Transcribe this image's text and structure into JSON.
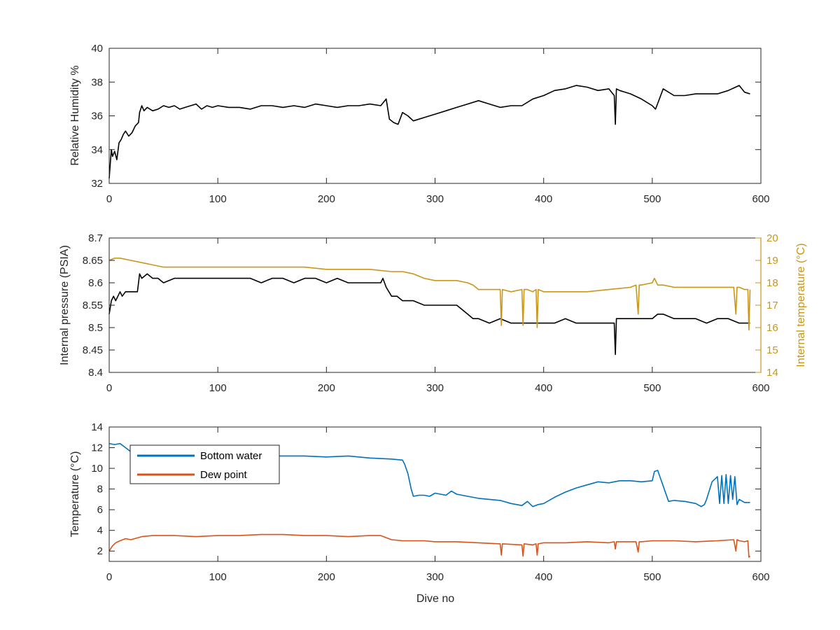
{
  "figure": {
    "background": "#ffffff",
    "axis_color": "#262626"
  },
  "chart_data": [
    {
      "type": "line",
      "xlabel": "",
      "ylabel": "Relative Humidity %",
      "xlim": [
        0,
        600
      ],
      "ylim": [
        32,
        40
      ],
      "xticks": [
        0,
        100,
        200,
        300,
        400,
        500,
        600
      ],
      "yticks": [
        32,
        34,
        36,
        38,
        40
      ],
      "grid": false,
      "series": [
        {
          "color": "#000000",
          "x": [
            0,
            1,
            2,
            3,
            5,
            7,
            9,
            11,
            13,
            15,
            18,
            21,
            24,
            27,
            28,
            30,
            32,
            35,
            40,
            45,
            50,
            55,
            60,
            65,
            70,
            75,
            80,
            85,
            90,
            95,
            100,
            110,
            120,
            130,
            140,
            150,
            160,
            170,
            180,
            190,
            200,
            210,
            220,
            230,
            240,
            250,
            255,
            258,
            262,
            266,
            270,
            275,
            280,
            290,
            300,
            310,
            320,
            330,
            340,
            350,
            360,
            370,
            380,
            390,
            400,
            410,
            420,
            430,
            440,
            450,
            460,
            465,
            466,
            467,
            470,
            480,
            490,
            500,
            503,
            506,
            510,
            520,
            530,
            540,
            550,
            560,
            570,
            580,
            585,
            590
          ],
          "values": [
            32.3,
            33.2,
            34.0,
            33.6,
            33.9,
            33.4,
            34.4,
            34.6,
            34.9,
            35.1,
            34.8,
            35.0,
            35.4,
            35.6,
            36.2,
            36.6,
            36.3,
            36.5,
            36.3,
            36.4,
            36.6,
            36.5,
            36.6,
            36.4,
            36.5,
            36.6,
            36.7,
            36.4,
            36.6,
            36.5,
            36.6,
            36.5,
            36.5,
            36.4,
            36.6,
            36.6,
            36.5,
            36.6,
            36.5,
            36.7,
            36.6,
            36.5,
            36.6,
            36.6,
            36.7,
            36.6,
            37.0,
            35.8,
            35.6,
            35.5,
            36.2,
            36.0,
            35.7,
            35.9,
            36.1,
            36.3,
            36.5,
            36.7,
            36.9,
            36.7,
            36.5,
            36.6,
            36.6,
            37.0,
            37.2,
            37.5,
            37.6,
            37.8,
            37.7,
            37.5,
            37.6,
            37.2,
            35.5,
            37.6,
            37.5,
            37.3,
            37.0,
            36.6,
            36.4,
            36.9,
            37.6,
            37.2,
            37.2,
            37.3,
            37.3,
            37.3,
            37.5,
            37.8,
            37.4,
            37.3
          ]
        }
      ]
    },
    {
      "type": "line",
      "xlabel": "",
      "ylabel": "Internal pressure (PSIA)",
      "ylabel_right": "Internal temperature (°C)",
      "xlim": [
        0,
        600
      ],
      "ylim": [
        8.4,
        8.7
      ],
      "ylim_right": [
        14,
        20
      ],
      "xticks": [
        0,
        100,
        200,
        300,
        400,
        500,
        600
      ],
      "yticks": [
        "8.4",
        "8.45",
        "8.5",
        "8.55",
        "8.6",
        "8.65",
        "8.7"
      ],
      "yticks_right": [
        14,
        15,
        16,
        17,
        18,
        19,
        20
      ],
      "grid": false,
      "series": [
        {
          "axis": "left",
          "color": "#000000",
          "x": [
            0,
            2,
            4,
            6,
            8,
            10,
            12,
            15,
            18,
            22,
            26,
            27,
            28,
            30,
            35,
            40,
            45,
            50,
            60,
            70,
            80,
            90,
            100,
            110,
            120,
            130,
            140,
            150,
            160,
            170,
            180,
            190,
            200,
            210,
            220,
            230,
            240,
            250,
            252,
            255,
            260,
            265,
            270,
            280,
            290,
            300,
            310,
            320,
            330,
            335,
            340,
            350,
            360,
            370,
            380,
            390,
            400,
            410,
            420,
            430,
            440,
            450,
            460,
            465,
            466,
            467,
            470,
            480,
            490,
            500,
            505,
            510,
            520,
            530,
            540,
            550,
            560,
            570,
            580,
            585,
            590
          ],
          "values": [
            8.53,
            8.56,
            8.57,
            8.56,
            8.57,
            8.58,
            8.57,
            8.58,
            8.58,
            8.58,
            8.58,
            8.6,
            8.62,
            8.61,
            8.62,
            8.61,
            8.61,
            8.6,
            8.61,
            8.61,
            8.61,
            8.61,
            8.61,
            8.61,
            8.61,
            8.61,
            8.6,
            8.61,
            8.61,
            8.6,
            8.61,
            8.61,
            8.6,
            8.61,
            8.6,
            8.6,
            8.6,
            8.6,
            8.61,
            8.59,
            8.57,
            8.57,
            8.56,
            8.56,
            8.55,
            8.55,
            8.55,
            8.55,
            8.53,
            8.52,
            8.52,
            8.51,
            8.52,
            8.51,
            8.51,
            8.51,
            8.51,
            8.51,
            8.52,
            8.51,
            8.51,
            8.51,
            8.51,
            8.51,
            8.44,
            8.52,
            8.52,
            8.52,
            8.52,
            8.52,
            8.53,
            8.53,
            8.52,
            8.52,
            8.52,
            8.51,
            8.52,
            8.52,
            8.51,
            8.51,
            8.51
          ]
        },
        {
          "axis": "right",
          "color": "#c9961a",
          "x": [
            0,
            5,
            10,
            20,
            30,
            40,
            50,
            60,
            80,
            100,
            120,
            140,
            160,
            180,
            200,
            220,
            240,
            260,
            270,
            280,
            290,
            300,
            310,
            320,
            330,
            335,
            340,
            350,
            360,
            361,
            362,
            370,
            380,
            381,
            382,
            385,
            390,
            393,
            394,
            395,
            400,
            420,
            440,
            460,
            480,
            485,
            487,
            488,
            490,
            500,
            502,
            505,
            510,
            520,
            540,
            560,
            575,
            577,
            578,
            580,
            585,
            588,
            589,
            590
          ],
          "values": [
            19.0,
            19.1,
            19.1,
            19.0,
            18.9,
            18.8,
            18.7,
            18.7,
            18.7,
            18.7,
            18.7,
            18.7,
            18.7,
            18.7,
            18.6,
            18.6,
            18.6,
            18.5,
            18.5,
            18.4,
            18.2,
            18.1,
            18.1,
            18.1,
            18.0,
            17.9,
            17.7,
            17.7,
            17.7,
            16.1,
            17.7,
            17.6,
            17.7,
            16.1,
            17.7,
            17.7,
            17.6,
            17.7,
            16.0,
            17.7,
            17.6,
            17.6,
            17.6,
            17.7,
            17.8,
            17.9,
            16.6,
            17.9,
            17.9,
            18.0,
            18.2,
            17.9,
            17.9,
            17.8,
            17.8,
            17.8,
            17.8,
            16.6,
            17.8,
            17.8,
            17.7,
            17.7,
            15.9,
            17.7
          ]
        }
      ]
    },
    {
      "type": "line",
      "xlabel": "Dive no",
      "ylabel": "Temperature (°C)",
      "xlim": [
        0,
        600
      ],
      "ylim": [
        1,
        14
      ],
      "xticks": [
        0,
        100,
        200,
        300,
        400,
        500,
        600
      ],
      "yticks": [
        2,
        4,
        6,
        8,
        10,
        12,
        14
      ],
      "grid": false,
      "legend": "top-left",
      "series": [
        {
          "name": "Bottom water",
          "color": "#0072bd",
          "x": [
            0,
            5,
            10,
            15,
            20,
            30,
            40,
            60,
            80,
            100,
            120,
            140,
            160,
            180,
            200,
            220,
            240,
            260,
            270,
            272,
            275,
            278,
            280,
            285,
            290,
            295,
            300,
            305,
            310,
            315,
            320,
            330,
            340,
            350,
            360,
            370,
            380,
            385,
            390,
            395,
            400,
            410,
            420,
            430,
            440,
            450,
            460,
            470,
            480,
            490,
            500,
            502,
            505,
            508,
            510,
            515,
            520,
            530,
            540,
            545,
            548,
            550,
            555,
            560,
            562,
            564,
            566,
            568,
            570,
            572,
            574,
            576,
            578,
            580,
            585,
            590
          ],
          "values": [
            12.4,
            12.3,
            12.4,
            12.0,
            11.6,
            11.4,
            11.3,
            11.3,
            11.2,
            11.3,
            11.2,
            11.2,
            11.2,
            11.2,
            11.1,
            11.2,
            11.0,
            10.9,
            10.8,
            10.4,
            9.5,
            8.0,
            7.3,
            7.4,
            7.4,
            7.3,
            7.6,
            7.5,
            7.4,
            7.8,
            7.5,
            7.3,
            7.1,
            7.0,
            6.9,
            6.6,
            6.4,
            6.8,
            6.3,
            6.5,
            6.6,
            7.2,
            7.7,
            8.1,
            8.4,
            8.7,
            8.6,
            8.8,
            8.8,
            8.7,
            8.8,
            9.7,
            9.8,
            8.9,
            8.3,
            6.8,
            6.9,
            6.8,
            6.6,
            6.3,
            6.5,
            7.0,
            8.7,
            9.2,
            6.6,
            9.3,
            6.6,
            9.4,
            6.6,
            9.3,
            7.0,
            9.2,
            6.5,
            7.0,
            6.7,
            6.7
          ]
        },
        {
          "name": "Dew point",
          "color": "#d95319",
          "x": [
            0,
            3,
            6,
            10,
            15,
            20,
            30,
            40,
            60,
            80,
            100,
            120,
            140,
            160,
            180,
            200,
            220,
            240,
            250,
            260,
            270,
            280,
            290,
            300,
            320,
            340,
            360,
            361,
            362,
            380,
            381,
            382,
            390,
            393,
            394,
            395,
            400,
            420,
            440,
            460,
            465,
            466,
            467,
            480,
            485,
            487,
            488,
            490,
            500,
            520,
            540,
            560,
            575,
            577,
            578,
            580,
            585,
            588,
            589,
            590
          ],
          "values": [
            2.0,
            2.5,
            2.8,
            3.0,
            3.2,
            3.1,
            3.4,
            3.5,
            3.5,
            3.4,
            3.5,
            3.5,
            3.6,
            3.6,
            3.5,
            3.5,
            3.4,
            3.5,
            3.5,
            3.1,
            3.0,
            3.0,
            3.0,
            2.9,
            2.9,
            2.8,
            2.7,
            1.6,
            2.7,
            2.6,
            1.5,
            2.7,
            2.6,
            2.7,
            1.6,
            2.7,
            2.8,
            2.8,
            2.9,
            2.8,
            2.9,
            2.2,
            2.9,
            2.9,
            2.9,
            1.9,
            2.9,
            2.9,
            3.0,
            3.0,
            2.9,
            3.0,
            3.1,
            2.0,
            3.1,
            3.0,
            2.9,
            3.0,
            1.4,
            1.5
          ]
        }
      ]
    }
  ]
}
